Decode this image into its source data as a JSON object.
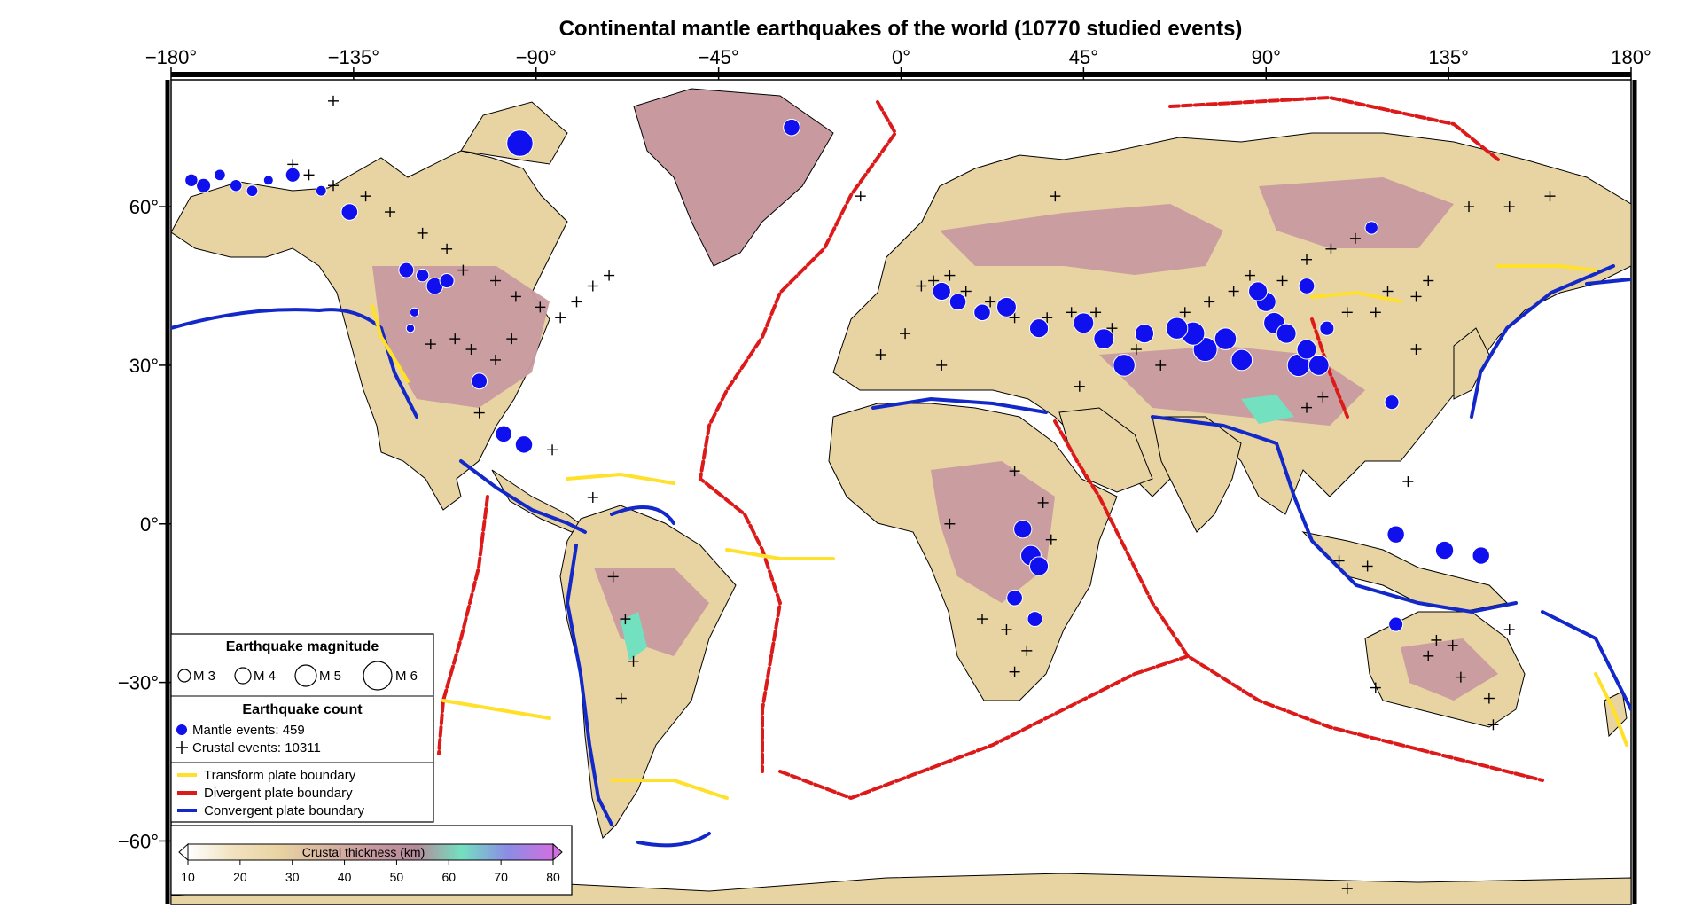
{
  "map": {
    "title": "Continental mantle earthquakes of the world (10770 studied events)",
    "projection": "cylindrical",
    "lon_range": [
      -180,
      180
    ],
    "lat_range": [
      -72,
      84
    ],
    "lon_ticks": [
      {
        "value": -180,
        "label": "−180°"
      },
      {
        "value": -135,
        "label": "−135°"
      },
      {
        "value": -90,
        "label": "−90°"
      },
      {
        "value": -45,
        "label": "−45°"
      },
      {
        "value": 0,
        "label": "0°"
      },
      {
        "value": 45,
        "label": "45°"
      },
      {
        "value": 90,
        "label": "90°"
      },
      {
        "value": 135,
        "label": "135°"
      },
      {
        "value": 180,
        "label": "180°"
      }
    ],
    "lat_ticks": [
      {
        "value": 60,
        "label": "60°"
      },
      {
        "value": 30,
        "label": "30°"
      },
      {
        "value": 0,
        "label": "0°"
      },
      {
        "value": -30,
        "label": "−30°"
      },
      {
        "value": -60,
        "label": "−60°"
      }
    ],
    "colors": {
      "ocean": "#ffffff",
      "land_thin": "#e8d3a2",
      "land_thick": "#c89aa0",
      "land_very_thick": "#73e0c0",
      "mantle_event": "#1010ee",
      "crustal_event": "#000000",
      "transform": "#ffe02a",
      "divergent": "#dd1a1a",
      "convergent": "#1328c8"
    }
  },
  "legend": {
    "magnitude_title": "Earthquake magnitude",
    "magnitudes": [
      {
        "label": "M 3",
        "mag": 3
      },
      {
        "label": "M 4",
        "mag": 4
      },
      {
        "label": "M 5",
        "mag": 5
      },
      {
        "label": "M 6",
        "mag": 6
      }
    ],
    "count_title": "Earthquake count",
    "mantle_label": "Mantle events: 459",
    "crustal_label": "Crustal events: 10311",
    "boundaries": [
      {
        "label": "Transform plate boundary",
        "color": "#ffe02a"
      },
      {
        "label": "Divergent plate boundary",
        "color": "#dd1a1a"
      },
      {
        "label": "Convergent plate boundary",
        "color": "#1328c8"
      }
    ]
  },
  "colorbar": {
    "label": "Crustal thickness (km)",
    "min": 10,
    "max": 80,
    "ticks": [
      "10",
      "20",
      "30",
      "40",
      "50",
      "60",
      "70",
      "80"
    ],
    "stops": [
      "#ffffff",
      "#f1e1bf",
      "#e8d3a2",
      "#d8b6a0",
      "#c89aa0",
      "#b48a9a",
      "#73e0c0",
      "#8c8ce6",
      "#d070e0"
    ]
  },
  "mantle_events": [
    {
      "lon": -27,
      "lat": 75,
      "mag": 4.5
    },
    {
      "lon": -94,
      "lat": 72,
      "mag": 5.8
    },
    {
      "lon": -175,
      "lat": 65,
      "mag": 4.0
    },
    {
      "lon": -172,
      "lat": 64,
      "mag": 4.2
    },
    {
      "lon": -168,
      "lat": 66,
      "mag": 3.8
    },
    {
      "lon": -164,
      "lat": 64,
      "mag": 3.9
    },
    {
      "lon": -160,
      "lat": 63,
      "mag": 3.8
    },
    {
      "lon": -156,
      "lat": 65,
      "mag": 3.6
    },
    {
      "lon": -150,
      "lat": 66,
      "mag": 4.2
    },
    {
      "lon": -143,
      "lat": 63,
      "mag": 3.7
    },
    {
      "lon": -136,
      "lat": 59,
      "mag": 4.5
    },
    {
      "lon": -122,
      "lat": 48,
      "mag": 4.3
    },
    {
      "lon": -118,
      "lat": 47,
      "mag": 4.0
    },
    {
      "lon": -115,
      "lat": 45,
      "mag": 4.5
    },
    {
      "lon": -112,
      "lat": 46,
      "mag": 4.2
    },
    {
      "lon": -120,
      "lat": 40,
      "mag": 3.5
    },
    {
      "lon": -121,
      "lat": 37,
      "mag": 3.4
    },
    {
      "lon": -104,
      "lat": 27,
      "mag": 4.4
    },
    {
      "lon": -98,
      "lat": 17,
      "mag": 4.5
    },
    {
      "lon": -93,
      "lat": 15,
      "mag": 4.6
    },
    {
      "lon": 10,
      "lat": 44,
      "mag": 4.7
    },
    {
      "lon": 14,
      "lat": 42,
      "mag": 4.5
    },
    {
      "lon": 20,
      "lat": 40,
      "mag": 4.5
    },
    {
      "lon": 26,
      "lat": 41,
      "mag": 4.9
    },
    {
      "lon": 34,
      "lat": 37,
      "mag": 4.8
    },
    {
      "lon": 45,
      "lat": 38,
      "mag": 5.0
    },
    {
      "lon": 50,
      "lat": 35,
      "mag": 5.0
    },
    {
      "lon": 55,
      "lat": 30,
      "mag": 5.2
    },
    {
      "lon": 60,
      "lat": 36,
      "mag": 4.8
    },
    {
      "lon": 68,
      "lat": 37,
      "mag": 5.2
    },
    {
      "lon": 72,
      "lat": 36,
      "mag": 5.4
    },
    {
      "lon": 75,
      "lat": 33,
      "mag": 5.5
    },
    {
      "lon": 80,
      "lat": 35,
      "mag": 5.2
    },
    {
      "lon": 84,
      "lat": 31,
      "mag": 5.1
    },
    {
      "lon": 88,
      "lat": 44,
      "mag": 4.8
    },
    {
      "lon": 90,
      "lat": 42,
      "mag": 4.9
    },
    {
      "lon": 92,
      "lat": 38,
      "mag": 5.1
    },
    {
      "lon": 95,
      "lat": 36,
      "mag": 4.9
    },
    {
      "lon": 98,
      "lat": 30,
      "mag": 5.3
    },
    {
      "lon": 100,
      "lat": 33,
      "mag": 4.9
    },
    {
      "lon": 103,
      "lat": 30,
      "mag": 5.0
    },
    {
      "lon": 100,
      "lat": 45,
      "mag": 4.4
    },
    {
      "lon": 105,
      "lat": 37,
      "mag": 4.2
    },
    {
      "lon": 116,
      "lat": 56,
      "mag": 4.0
    },
    {
      "lon": 30,
      "lat": -1,
      "mag": 4.7
    },
    {
      "lon": 32,
      "lat": -6,
      "mag": 5.0
    },
    {
      "lon": 34,
      "lat": -8,
      "mag": 4.8
    },
    {
      "lon": 28,
      "lat": -14,
      "mag": 4.4
    },
    {
      "lon": 33,
      "lat": -18,
      "mag": 4.3
    },
    {
      "lon": 122,
      "lat": -2,
      "mag": 4.6
    },
    {
      "lon": 134,
      "lat": -5,
      "mag": 4.7
    },
    {
      "lon": 143,
      "lat": -6,
      "mag": 4.6
    },
    {
      "lon": 122,
      "lat": -19,
      "mag": 4.2
    },
    {
      "lon": 121,
      "lat": 23,
      "mag": 4.2
    }
  ],
  "crustal_events": [
    {
      "lon": -140,
      "lat": 80
    },
    {
      "lon": -150,
      "lat": 68
    },
    {
      "lon": -146,
      "lat": 66
    },
    {
      "lon": -140,
      "lat": 64
    },
    {
      "lon": -132,
      "lat": 62
    },
    {
      "lon": -126,
      "lat": 59
    },
    {
      "lon": -118,
      "lat": 55
    },
    {
      "lon": -112,
      "lat": 52
    },
    {
      "lon": -108,
      "lat": 48
    },
    {
      "lon": -100,
      "lat": 46
    },
    {
      "lon": -95,
      "lat": 43
    },
    {
      "lon": -89,
      "lat": 41
    },
    {
      "lon": -84,
      "lat": 39
    },
    {
      "lon": -80,
      "lat": 42
    },
    {
      "lon": -76,
      "lat": 45
    },
    {
      "lon": -72,
      "lat": 47
    },
    {
      "lon": -110,
      "lat": 35
    },
    {
      "lon": -106,
      "lat": 33
    },
    {
      "lon": -100,
      "lat": 31
    },
    {
      "lon": -96,
      "lat": 35
    },
    {
      "lon": -116,
      "lat": 34
    },
    {
      "lon": -104,
      "lat": 21
    },
    {
      "lon": -86,
      "lat": 14
    },
    {
      "lon": -76,
      "lat": 5
    },
    {
      "lon": -71,
      "lat": -10
    },
    {
      "lon": -68,
      "lat": -18
    },
    {
      "lon": -66,
      "lat": -26
    },
    {
      "lon": -69,
      "lat": -33
    },
    {
      "lon": -10,
      "lat": 62
    },
    {
      "lon": 5,
      "lat": 45
    },
    {
      "lon": 8,
      "lat": 46
    },
    {
      "lon": 12,
      "lat": 47
    },
    {
      "lon": 16,
      "lat": 44
    },
    {
      "lon": 22,
      "lat": 42
    },
    {
      "lon": 28,
      "lat": 39
    },
    {
      "lon": 36,
      "lat": 39
    },
    {
      "lon": 42,
      "lat": 40
    },
    {
      "lon": 48,
      "lat": 40
    },
    {
      "lon": 52,
      "lat": 37
    },
    {
      "lon": 58,
      "lat": 33
    },
    {
      "lon": 64,
      "lat": 30
    },
    {
      "lon": 70,
      "lat": 40
    },
    {
      "lon": 76,
      "lat": 42
    },
    {
      "lon": 82,
      "lat": 44
    },
    {
      "lon": 86,
      "lat": 47
    },
    {
      "lon": 94,
      "lat": 46
    },
    {
      "lon": 100,
      "lat": 50
    },
    {
      "lon": 106,
      "lat": 52
    },
    {
      "lon": 112,
      "lat": 54
    },
    {
      "lon": 104,
      "lat": 24
    },
    {
      "lon": 100,
      "lat": 22
    },
    {
      "lon": 110,
      "lat": 40
    },
    {
      "lon": 117,
      "lat": 40
    },
    {
      "lon": 120,
      "lat": 44
    },
    {
      "lon": 127,
      "lat": 43
    },
    {
      "lon": 130,
      "lat": 46
    },
    {
      "lon": 140,
      "lat": 60
    },
    {
      "lon": 150,
      "lat": 60
    },
    {
      "lon": 160,
      "lat": 62
    },
    {
      "lon": 38,
      "lat": 62
    },
    {
      "lon": 28,
      "lat": 10
    },
    {
      "lon": 35,
      "lat": 4
    },
    {
      "lon": 37,
      "lat": -3
    },
    {
      "lon": 26,
      "lat": -20
    },
    {
      "lon": 20,
      "lat": -18
    },
    {
      "lon": 28,
      "lat": -28
    },
    {
      "lon": 31,
      "lat": -24
    },
    {
      "lon": 12,
      "lat": 0
    },
    {
      "lon": -5,
      "lat": 32
    },
    {
      "lon": 1,
      "lat": 36
    },
    {
      "lon": 10,
      "lat": 30
    },
    {
      "lon": 44,
      "lat": 26
    },
    {
      "lon": 130,
      "lat": -25
    },
    {
      "lon": 132,
      "lat": -22
    },
    {
      "lon": 136,
      "lat": -23
    },
    {
      "lon": 138,
      "lat": -29
    },
    {
      "lon": 145,
      "lat": -33
    },
    {
      "lon": 146,
      "lat": -38
    },
    {
      "lon": 117,
      "lat": -31
    },
    {
      "lon": 150,
      "lat": -20
    },
    {
      "lon": 108,
      "lat": -7
    },
    {
      "lon": 115,
      "lat": -8
    },
    {
      "lon": 125,
      "lat": 8
    },
    {
      "lon": 127,
      "lat": 33
    },
    {
      "lon": 110,
      "lat": -69
    }
  ]
}
